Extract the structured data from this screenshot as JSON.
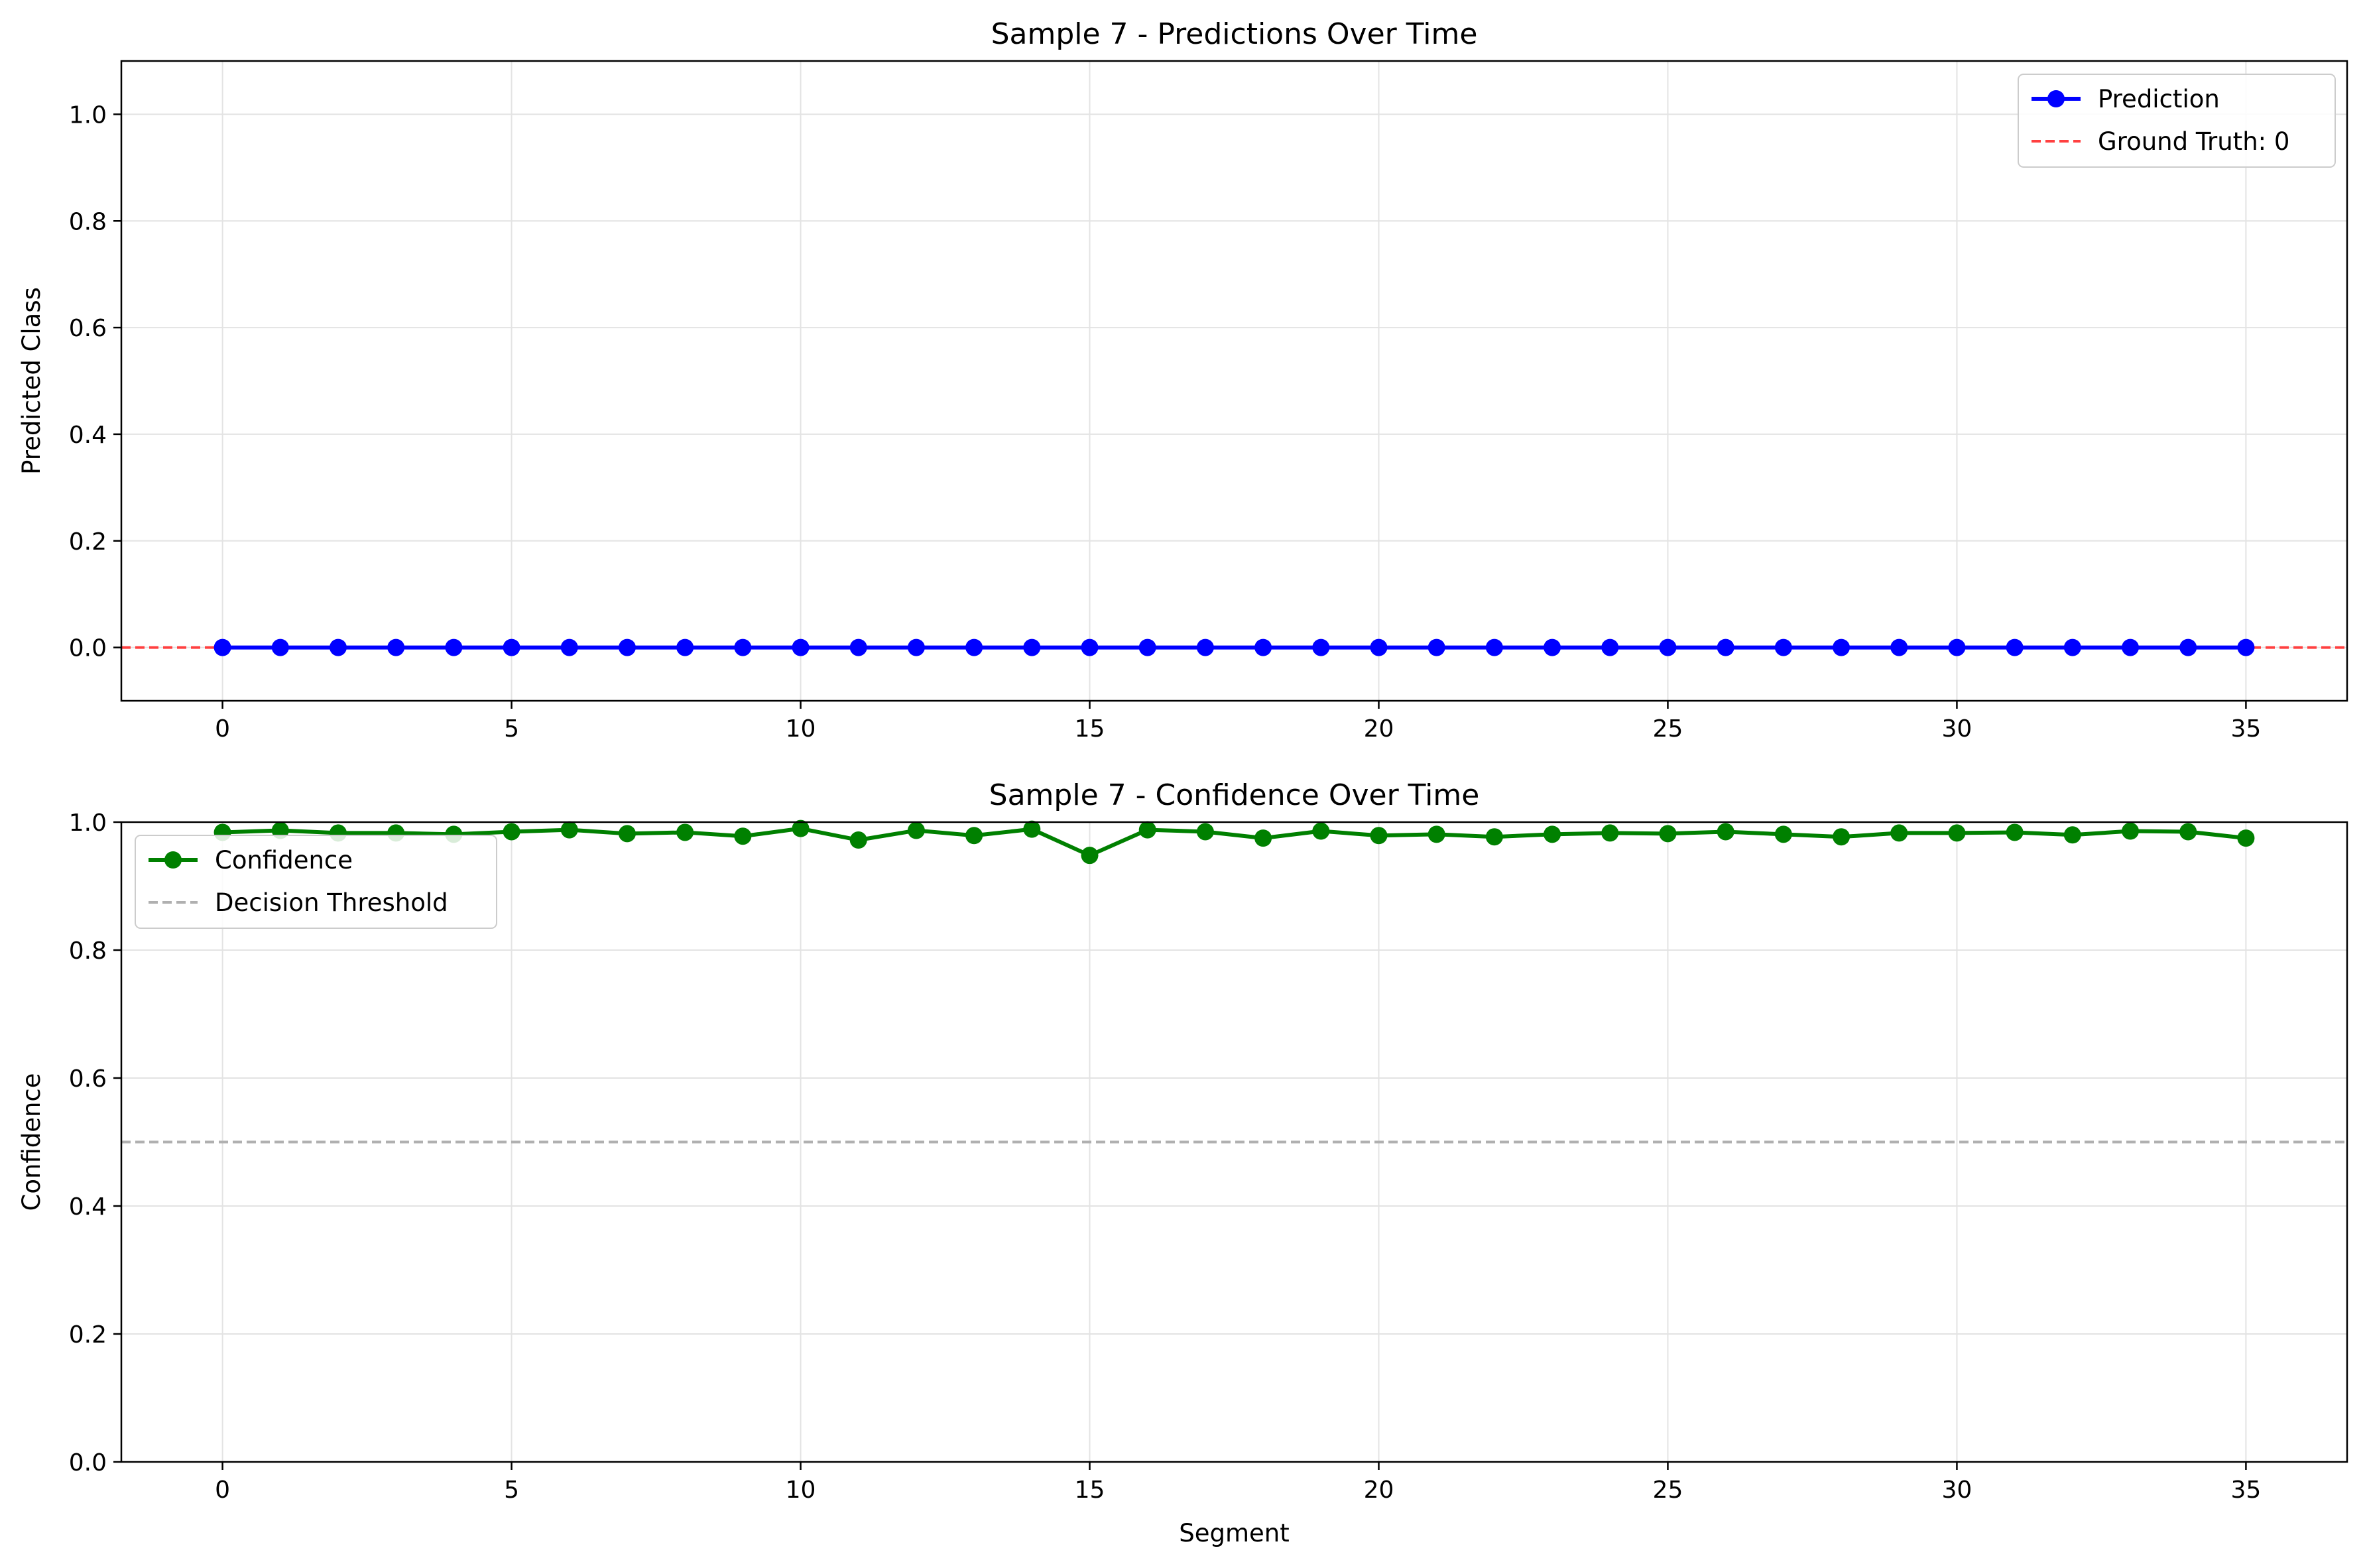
{
  "chart_data": [
    {
      "type": "line",
      "title": "Sample 7 - Predictions Over Time",
      "xlabel": "",
      "ylabel": "Predicted Class",
      "xlim": [
        -1.75,
        36.75
      ],
      "ylim": [
        -0.1,
        1.1
      ],
      "x_ticks": [
        0,
        5,
        10,
        15,
        20,
        25,
        30,
        35
      ],
      "y_ticks": [
        0.0,
        0.2,
        0.4,
        0.6,
        0.8,
        1.0
      ],
      "y_tick_labels": [
        "0.0",
        "0.2",
        "0.4",
        "0.6",
        "0.8",
        "1.0"
      ],
      "grid": true,
      "legend_position": "upper right",
      "x": [
        0,
        1,
        2,
        3,
        4,
        5,
        6,
        7,
        8,
        9,
        10,
        11,
        12,
        13,
        14,
        15,
        16,
        17,
        18,
        19,
        20,
        21,
        22,
        23,
        24,
        25,
        26,
        27,
        28,
        29,
        30,
        31,
        32,
        33,
        34,
        35
      ],
      "series": [
        {
          "name": "Prediction",
          "color": "#0000ff",
          "style": "solid-marker",
          "values": [
            0,
            0,
            0,
            0,
            0,
            0,
            0,
            0,
            0,
            0,
            0,
            0,
            0,
            0,
            0,
            0,
            0,
            0,
            0,
            0,
            0,
            0,
            0,
            0,
            0,
            0,
            0,
            0,
            0,
            0,
            0,
            0,
            0,
            0,
            0,
            0
          ]
        }
      ],
      "reference_lines": [
        {
          "name": "Ground Truth: 0",
          "y": 0,
          "color": "#ff4040",
          "style": "dashed"
        }
      ]
    },
    {
      "type": "line",
      "title": "Sample 7 - Confidence Over Time",
      "xlabel": "Segment",
      "ylabel": "Confidence",
      "xlim": [
        -1.75,
        36.75
      ],
      "ylim": [
        0,
        1
      ],
      "x_ticks": [
        0,
        5,
        10,
        15,
        20,
        25,
        30,
        35
      ],
      "y_ticks": [
        0.0,
        0.2,
        0.4,
        0.6,
        0.8,
        1.0
      ],
      "y_tick_labels": [
        "0.0",
        "0.2",
        "0.4",
        "0.6",
        "0.8",
        "1.0"
      ],
      "grid": true,
      "legend_position": "upper left",
      "x": [
        0,
        1,
        2,
        3,
        4,
        5,
        6,
        7,
        8,
        9,
        10,
        11,
        12,
        13,
        14,
        15,
        16,
        17,
        18,
        19,
        20,
        21,
        22,
        23,
        24,
        25,
        26,
        27,
        28,
        29,
        30,
        31,
        32,
        33,
        34,
        35
      ],
      "series": [
        {
          "name": "Confidence",
          "color": "#008000",
          "style": "solid-marker",
          "values": [
            0.984,
            0.987,
            0.983,
            0.983,
            0.981,
            0.985,
            0.988,
            0.982,
            0.984,
            0.978,
            0.99,
            0.972,
            0.987,
            0.979,
            0.989,
            0.948,
            0.988,
            0.985,
            0.975,
            0.986,
            0.979,
            0.981,
            0.977,
            0.981,
            0.983,
            0.982,
            0.985,
            0.981,
            0.977,
            0.983,
            0.983,
            0.984,
            0.98,
            0.986,
            0.985,
            0.975
          ]
        }
      ],
      "reference_lines": [
        {
          "name": "Decision Threshold",
          "y": 0.5,
          "color": "#b0b0b0",
          "style": "dashed"
        }
      ]
    }
  ]
}
